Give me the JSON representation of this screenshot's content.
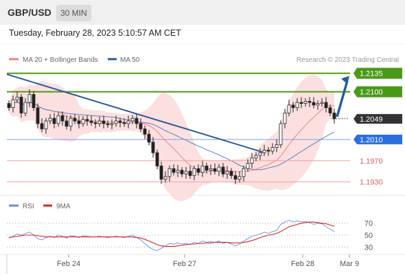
{
  "header": {
    "symbol": "GBP/USD",
    "interval": "30 MIN",
    "timestamp": "Tuesday, February 28, 2023 5:10:57 AM CET"
  },
  "chart_data": [
    {
      "type": "candlestick",
      "title": "GBP/USD",
      "xlabel": "",
      "ylabel": "",
      "ylim": [
        1.191,
        1.215
      ],
      "x_ticks": [
        "Feb 24",
        "Feb 27",
        "Feb 28",
        "Mar 9"
      ],
      "legend": [
        {
          "name": "MA 20 + Bollinger Bands",
          "color": "#f08080"
        },
        {
          "name": "MA 50",
          "color": "#2c5b9a"
        }
      ],
      "legend_position": "top-left",
      "watermark": "Research © 2023 Trading Central",
      "levels": [
        {
          "value": 1.2135,
          "label": "1.2135",
          "color": "#4a9a1a",
          "kind": "resistance"
        },
        {
          "value": 1.21,
          "label": "1.2100",
          "color": "#4a9a1a",
          "kind": "resistance"
        },
        {
          "value": 1.2049,
          "label": "1.2049",
          "color": "#333333",
          "kind": "last-price"
        },
        {
          "value": 1.201,
          "label": "1.2010",
          "color": "#2a6ee0",
          "kind": "pivot"
        },
        {
          "value": 1.197,
          "label": "1.1970",
          "color": "#e06060",
          "kind": "support"
        },
        {
          "value": 1.193,
          "label": "1.1930",
          "color": "#e06060",
          "kind": "support"
        }
      ],
      "trendline": {
        "from": [
          0,
          1.2133
        ],
        "to": [
          61,
          1.1986
        ],
        "color": "#2c5b9a"
      },
      "arrow": {
        "from_index": 79,
        "from_value": 1.2049,
        "to_value": 1.213,
        "color": "#2c5b9a"
      },
      "series": [
        {
          "name": "Price",
          "closes": [
            1.207,
            1.2085,
            1.209,
            1.206,
            1.208,
            1.2095,
            1.207,
            1.204,
            1.203,
            1.2045,
            1.205,
            1.204,
            1.2055,
            1.2045,
            1.2035,
            1.205,
            1.2045,
            1.204,
            1.2048,
            1.2045,
            1.2042,
            1.204,
            1.2045,
            1.204,
            1.2038,
            1.204,
            1.2045,
            1.2042,
            1.204,
            1.2045,
            1.205,
            1.204,
            1.203,
            1.202,
            1.2005,
            1.1985,
            1.196,
            1.1935,
            1.194,
            1.1955,
            1.1948,
            1.1952,
            1.1945,
            1.195,
            1.1942,
            1.1955,
            1.1948,
            1.196,
            1.1952,
            1.1955,
            1.195,
            1.1958,
            1.1945,
            1.195,
            1.1942,
            1.1935,
            1.194,
            1.1955,
            1.1965,
            1.1975,
            1.198,
            1.1985,
            1.199,
            1.1988,
            1.1995,
            1.2,
            1.204,
            1.206,
            1.2075,
            1.207,
            1.208,
            1.2078,
            1.2082,
            1.208,
            1.2075,
            1.2078,
            1.208,
            1.207,
            1.206,
            1.2049
          ]
        },
        {
          "name": "MA 20",
          "color": "#f08080"
        },
        {
          "name": "MA 50",
          "color": "#2c5b9a"
        }
      ]
    },
    {
      "type": "line",
      "title": "",
      "legend": [
        {
          "name": "RSI",
          "color": "#6a8fe0"
        },
        {
          "name": "9MA",
          "color": "#e02020"
        }
      ],
      "legend_position": "top-left",
      "ylim": [
        20,
        80
      ],
      "y_ticks": [
        70,
        50,
        30
      ],
      "series": [
        {
          "name": "RSI",
          "values": [
            45,
            48,
            52,
            50,
            53,
            55,
            50,
            44,
            42,
            46,
            48,
            46,
            50,
            48,
            45,
            49,
            48,
            46,
            49,
            48,
            47,
            47,
            48,
            47,
            46,
            47,
            48,
            47,
            46,
            48,
            50,
            46,
            42,
            36,
            30,
            26,
            24,
            28,
            32,
            36,
            35,
            37,
            35,
            36,
            34,
            38,
            36,
            40,
            38,
            39,
            38,
            40,
            36,
            38,
            35,
            32,
            35,
            40,
            44,
            48,
            50,
            52,
            55,
            53,
            56,
            58,
            68,
            72,
            75,
            72,
            74,
            72,
            73,
            71,
            68,
            70,
            69,
            64,
            60,
            56
          ]
        },
        {
          "name": "9MA",
          "values": [
            46,
            47,
            48,
            49,
            50,
            50,
            50,
            49,
            48,
            47,
            47,
            47,
            47,
            47,
            47,
            47,
            47,
            47,
            47,
            47,
            47,
            47,
            47,
            47,
            47,
            47,
            47,
            47,
            47,
            47,
            47,
            46,
            45,
            43,
            40,
            37,
            34,
            32,
            31,
            31,
            31,
            32,
            33,
            34,
            35,
            35,
            36,
            36,
            37,
            37,
            38,
            38,
            38,
            38,
            37,
            37,
            37,
            38,
            39,
            41,
            43,
            46,
            48,
            50,
            51,
            53,
            56,
            60,
            64,
            66,
            68,
            70,
            71,
            72,
            72,
            71,
            70,
            69,
            67,
            65
          ]
        }
      ]
    }
  ]
}
